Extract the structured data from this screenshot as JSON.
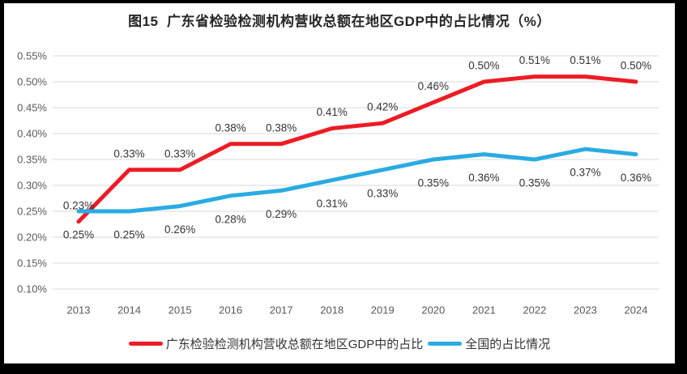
{
  "title": "图15  广东省检验检测机构营收总额在地区GDP中的占比情况（%）",
  "colors": {
    "guangdong_line": "#ED1C24",
    "national_line": "#29ABE2",
    "gridline": "#D9D9D9",
    "tick_text": "#595959",
    "data_label_text": "#333333",
    "title_text": "#262626",
    "panel_bg": "#FFFFFF",
    "frame_bg": "#000000"
  },
  "chart_data": {
    "type": "line",
    "title": "图15  广东省检验检测机构营收总额在地区GDP中的占比情况（%）",
    "categories": [
      "2013",
      "2014",
      "2015",
      "2016",
      "2017",
      "2018",
      "2019",
      "2020",
      "2021",
      "2022",
      "2023",
      "2024"
    ],
    "series": [
      {
        "name": "广东检验检测机构营收总额在地区GDP中的占比",
        "color": "#ED1C24",
        "values": [
          0.23,
          0.33,
          0.33,
          0.38,
          0.38,
          0.41,
          0.42,
          0.46,
          0.5,
          0.51,
          0.51,
          0.5
        ],
        "point_labels": [
          "0.23%",
          "0.33%",
          "0.33%",
          "0.38%",
          "0.38%",
          "0.41%",
          "0.42%",
          "0.46%",
          "0.50%",
          "0.51%",
          "0.51%",
          "0.50%"
        ],
        "label_position": "above"
      },
      {
        "name": "全国的占比情况",
        "color": "#29ABE2",
        "values": [
          0.25,
          0.25,
          0.26,
          0.28,
          0.29,
          0.31,
          0.33,
          0.35,
          0.36,
          0.35,
          0.37,
          0.36
        ],
        "point_labels": [
          "0.25%",
          "0.25%",
          "0.26%",
          "0.28%",
          "0.29%",
          "0.31%",
          "0.33%",
          "0.35%",
          "0.36%",
          "0.35%",
          "0.37%",
          "0.36%"
        ],
        "label_position": "below"
      }
    ],
    "xlabel": "",
    "ylabel": "",
    "ylim": [
      0.1,
      0.55
    ],
    "ytick_step": 0.05,
    "ytick_labels": [
      "0.10%",
      "0.15%",
      "0.20%",
      "0.25%",
      "0.30%",
      "0.35%",
      "0.40%",
      "0.45%",
      "0.50%",
      "0.55%"
    ],
    "grid": true,
    "legend_position": "bottom"
  },
  "legend": {
    "items": [
      {
        "label": "广东检验检测机构营收总额在地区GDP中的占比"
      },
      {
        "label": "全国的占比情况"
      }
    ]
  }
}
